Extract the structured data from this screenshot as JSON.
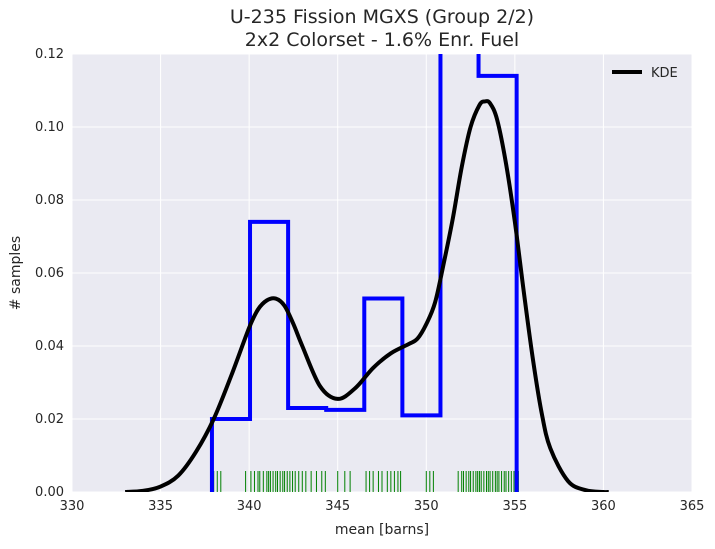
{
  "chart_data": {
    "type": "histogram+kde",
    "title_lines": [
      "U-235 Fission MGXS (Group 2/2)",
      "2x2 Colorset - 1.6% Enr. Fuel"
    ],
    "xlabel": "mean [barns]",
    "ylabel": "# samples",
    "xlim": [
      330,
      365
    ],
    "ylim": [
      0,
      0.12
    ],
    "xticks": [
      330,
      335,
      340,
      345,
      350,
      355,
      360,
      365
    ],
    "yticks": [
      0.0,
      0.02,
      0.04,
      0.06,
      0.08,
      0.1,
      0.12
    ],
    "xtick_labels": [
      "330",
      "335",
      "340",
      "345",
      "350",
      "355",
      "360",
      "365"
    ],
    "ytick_labels": [
      "0.00",
      "0.02",
      "0.04",
      "0.06",
      "0.08",
      "0.10",
      "0.12"
    ],
    "grid": true,
    "legend": {
      "position": "top-right",
      "entries": [
        {
          "name": "KDE",
          "color": "#000000"
        }
      ]
    },
    "histogram": {
      "color": "#0000ff",
      "bin_edges": [
        337.9,
        340.05,
        342.2,
        344.35,
        346.5,
        348.65,
        350.8,
        352.95,
        355.1
      ],
      "densities": [
        0.02,
        0.074,
        0.023,
        0.0225,
        0.053,
        0.021,
        0.132,
        0.114
      ]
    },
    "kde": {
      "name": "KDE",
      "color": "#000000",
      "x": [
        333.0,
        334.0,
        335.0,
        336.0,
        337.0,
        338.0,
        339.0,
        340.0,
        340.5,
        341.0,
        341.5,
        342.0,
        342.5,
        343.0,
        344.0,
        345.0,
        346.0,
        347.0,
        348.0,
        349.0,
        349.5,
        350.0,
        350.5,
        351.0,
        351.5,
        352.0,
        352.5,
        353.0,
        353.3,
        353.6,
        354.0,
        354.5,
        355.0,
        355.5,
        356.0,
        356.5,
        357.0,
        358.0,
        359.0,
        360.0,
        360.3
      ],
      "y": [
        0.0,
        0.0003,
        0.0015,
        0.0045,
        0.011,
        0.02,
        0.032,
        0.045,
        0.05,
        0.0525,
        0.053,
        0.051,
        0.046,
        0.04,
        0.029,
        0.0255,
        0.0285,
        0.034,
        0.038,
        0.0405,
        0.042,
        0.046,
        0.052,
        0.063,
        0.075,
        0.089,
        0.1,
        0.106,
        0.107,
        0.1065,
        0.102,
        0.09,
        0.074,
        0.055,
        0.037,
        0.022,
        0.012,
        0.003,
        0.0005,
        0.0,
        0.0
      ]
    },
    "rug": {
      "color": "#008000",
      "x": [
        338.0,
        338.2,
        338.4,
        339.8,
        340.1,
        340.3,
        340.5,
        340.6,
        340.8,
        341.0,
        341.1,
        341.2,
        341.35,
        341.5,
        341.6,
        341.75,
        341.9,
        342.0,
        342.15,
        342.3,
        342.45,
        342.6,
        342.8,
        343.0,
        343.2,
        343.5,
        343.8,
        344.1,
        344.3,
        345.0,
        345.4,
        345.7,
        346.6,
        346.8,
        347.0,
        347.3,
        347.5,
        347.8,
        348.0,
        348.2,
        348.4,
        348.55,
        350.0,
        350.2,
        350.4,
        351.8,
        352.0,
        352.1,
        352.25,
        352.4,
        352.5,
        352.65,
        352.8,
        352.9,
        353.0,
        353.1,
        353.25,
        353.4,
        353.5,
        353.6,
        353.75,
        353.9,
        354.0,
        354.1,
        354.25,
        354.4,
        354.5,
        354.65,
        354.8,
        354.95,
        355.1,
        355.2
      ]
    }
  }
}
